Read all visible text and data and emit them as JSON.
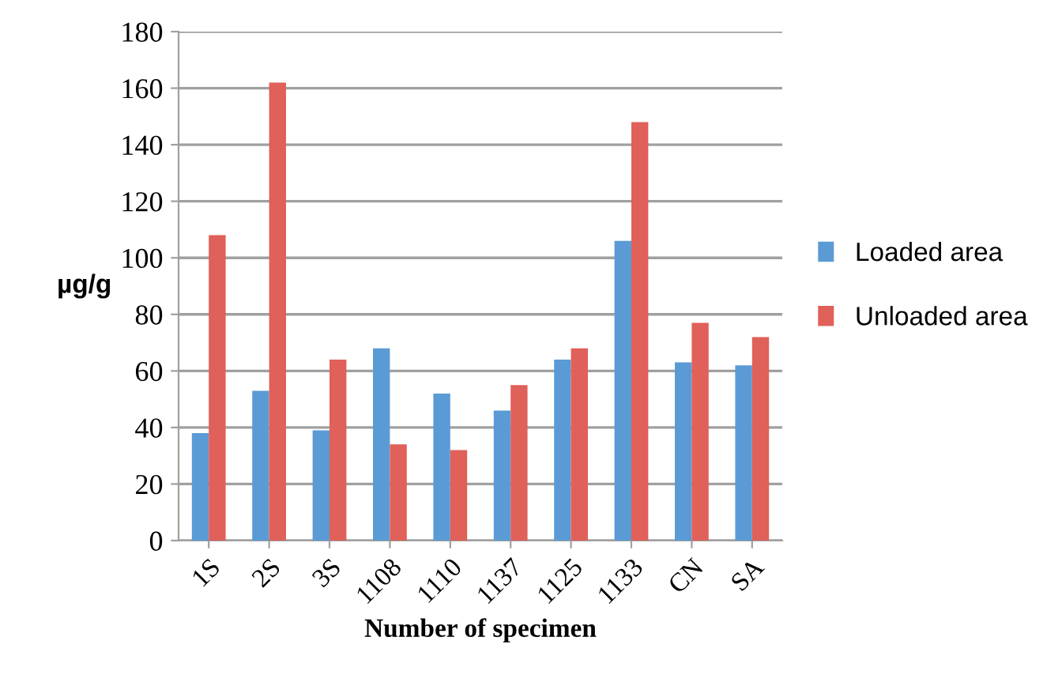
{
  "chart_data": {
    "type": "bar",
    "xlabel": "Number of specimen",
    "ylabel": "µg/g",
    "categories": [
      "1S",
      "2S",
      "3S",
      "1108",
      "1110",
      "1137",
      "1125",
      "1133",
      "CN",
      "SA"
    ],
    "series": [
      {
        "name": "Loaded area",
        "color": "#5b9bd5",
        "values": [
          38,
          53,
          39,
          68,
          52,
          46,
          64,
          106,
          63,
          62
        ]
      },
      {
        "name": "Unloaded area",
        "color": "#e0605a",
        "values": [
          108,
          162,
          64,
          34,
          32,
          55,
          68,
          148,
          77,
          72
        ]
      }
    ],
    "ylim": [
      0,
      180
    ],
    "yticks": [
      0,
      20,
      40,
      60,
      80,
      100,
      120,
      140,
      160,
      180
    ],
    "grid": "y",
    "legend": "right"
  }
}
